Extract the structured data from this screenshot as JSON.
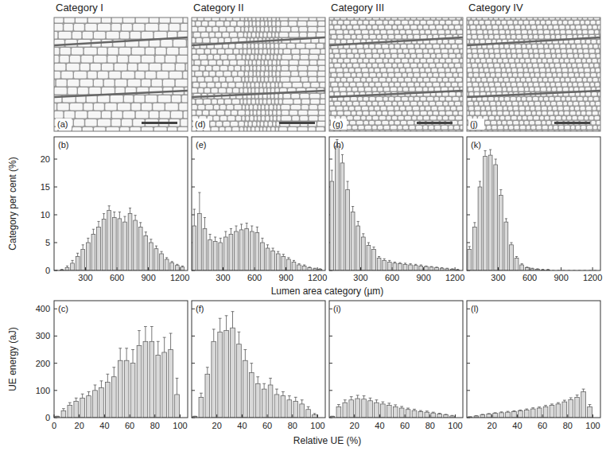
{
  "images": [
    {
      "title": "Category I",
      "annotation": "(a)"
    },
    {
      "title": "Category II",
      "annotation": "(d)"
    },
    {
      "title": "Category III",
      "annotation": "(g)"
    },
    {
      "title": "Category IV",
      "annotation": "(j)"
    }
  ],
  "chart_data": [
    {
      "type": "bar",
      "annotation": "(b)",
      "y_label": "Category per cent (%)",
      "x_label": "Lumen area category (µm)",
      "color": "#d9d9d9",
      "tick_labels": true,
      "x": [
        25,
        75,
        125,
        175,
        225,
        275,
        325,
        375,
        425,
        475,
        525,
        575,
        625,
        675,
        725,
        775,
        825,
        875,
        925,
        975,
        1025,
        1075,
        1125,
        1175,
        1225
      ],
      "values": [
        0,
        0.1,
        0.5,
        1.3,
        2.5,
        3.8,
        5,
        6.5,
        7.8,
        9.2,
        10.8,
        9.5,
        9.3,
        8.7,
        10.2,
        9,
        7.8,
        6.2,
        5,
        3.9,
        3,
        2,
        1.4,
        0.9,
        0.6
      ],
      "errors": [
        0,
        0.1,
        0.3,
        0.5,
        0.6,
        0.8,
        0.8,
        0.9,
        1,
        1,
        0.8,
        1,
        1.2,
        1,
        1,
        0.9,
        0.8,
        0.7,
        0.6,
        0.5,
        0.4,
        0.3,
        0.2,
        0.2,
        0.2
      ],
      "xlim": [
        0,
        1275
      ],
      "ylim": [
        0,
        24
      ],
      "xticks": [
        300,
        600,
        900,
        1200
      ],
      "yticks": [
        0,
        5,
        10,
        15,
        20
      ]
    },
    {
      "type": "bar",
      "annotation": "(e)",
      "color": "#d9d9d9",
      "tick_labels": "x",
      "x": [
        25,
        75,
        125,
        175,
        225,
        275,
        325,
        375,
        425,
        475,
        525,
        575,
        625,
        675,
        725,
        775,
        825,
        875,
        925,
        975,
        1025,
        1075,
        1125,
        1175,
        1225
      ],
      "values": [
        8,
        10.2,
        7.5,
        5.5,
        5.2,
        5,
        6,
        6.5,
        7,
        7.3,
        7.5,
        7,
        6.8,
        5,
        4,
        3.5,
        3,
        2.5,
        2,
        1.5,
        1,
        0.8,
        0.5,
        0.3,
        0.2
      ],
      "errors": [
        3,
        3.8,
        2,
        1,
        0.8,
        0.8,
        1,
        1,
        1,
        1,
        1,
        1,
        1,
        0.8,
        0.6,
        0.5,
        0.4,
        0.4,
        0.3,
        0.3,
        0.2,
        0.2,
        0.1,
        0.1,
        0.1
      ],
      "xlim": [
        0,
        1275
      ],
      "ylim": [
        0,
        24
      ],
      "xticks": [
        300,
        600,
        900,
        1200
      ],
      "yticks": [
        0,
        5,
        10,
        15,
        20
      ]
    },
    {
      "type": "bar",
      "annotation": "(h)",
      "color": "#d9d9d9",
      "tick_labels": "x",
      "x": [
        25,
        75,
        125,
        175,
        225,
        275,
        325,
        375,
        425,
        475,
        525,
        575,
        625,
        675,
        725,
        775,
        825,
        875,
        925,
        975,
        1025,
        1075,
        1125,
        1175,
        1225
      ],
      "values": [
        16,
        22.3,
        19.3,
        14.5,
        10.5,
        8,
        6,
        4.5,
        3.8,
        2.2,
        1.8,
        1.5,
        1.3,
        1.2,
        1.1,
        1,
        0.9,
        0.8,
        0.7,
        0.6,
        0.5,
        0.4,
        0.3,
        0.2,
        0.1
      ],
      "errors": [
        2,
        1.2,
        1.5,
        1.5,
        1,
        0.8,
        0.6,
        0.5,
        0.4,
        0.3,
        0.3,
        0.3,
        0.2,
        0.2,
        0.2,
        0.2,
        0.2,
        0.2,
        0.1,
        0.1,
        0.1,
        0.1,
        0.1,
        0.1,
        0.1
      ],
      "xlim": [
        0,
        1275
      ],
      "ylim": [
        0,
        24
      ],
      "xticks": [
        300,
        600,
        900,
        1200
      ],
      "yticks": [
        0,
        5,
        10,
        15,
        20
      ]
    },
    {
      "type": "bar",
      "annotation": "(k)",
      "color": "#d9d9d9",
      "tick_labels": "x",
      "x": [
        25,
        75,
        125,
        175,
        225,
        275,
        325,
        375,
        425,
        475,
        525,
        575,
        625,
        675,
        725,
        775,
        825,
        875,
        925,
        975,
        1025,
        1075,
        1125,
        1175,
        1225
      ],
      "values": [
        3.8,
        7.8,
        15,
        20.5,
        20.7,
        19,
        13.5,
        8.7,
        4.6,
        2.2,
        1,
        0.5,
        0.3,
        0.2,
        0.1,
        0.1,
        0,
        0,
        0,
        0,
        0,
        0,
        0,
        0,
        0
      ],
      "errors": [
        0.5,
        0.8,
        1,
        1,
        1,
        1,
        1,
        0.6,
        0.4,
        0.3,
        0.2,
        0.1,
        0.1,
        0.1,
        0.1,
        0.1,
        0,
        0,
        0,
        0,
        0,
        0,
        0,
        0,
        0
      ],
      "xlim": [
        0,
        1275
      ],
      "ylim": [
        0,
        24
      ],
      "xticks": [
        300,
        600,
        900,
        1200
      ],
      "yticks": [
        0,
        5,
        10,
        15,
        20
      ]
    },
    {
      "type": "bar",
      "annotation": "(c)",
      "y_label": "UE energy (aJ)",
      "x_label": "Relative UE  (%)",
      "color": "#d9d9d9",
      "tick_labels": true,
      "x": [
        2.5,
        7.5,
        12.5,
        17.5,
        22.5,
        27.5,
        32.5,
        37.5,
        42.5,
        47.5,
        52.5,
        57.5,
        62.5,
        67.5,
        72.5,
        77.5,
        82.5,
        87.5,
        92.5,
        97.5
      ],
      "values": [
        5,
        25,
        45,
        60,
        72,
        80,
        100,
        110,
        130,
        150,
        210,
        210,
        200,
        265,
        280,
        280,
        230,
        240,
        250,
        85
      ],
      "errors": [
        0,
        8,
        10,
        12,
        15,
        15,
        20,
        25,
        30,
        35,
        45,
        45,
        50,
        55,
        55,
        55,
        50,
        55,
        60,
        60
      ],
      "xlim": [
        0,
        106
      ],
      "ylim": [
        0,
        430
      ],
      "xticks": [
        0,
        20,
        40,
        60,
        80,
        100
      ],
      "yticks": [
        0,
        100,
        200,
        300,
        400
      ]
    },
    {
      "type": "bar",
      "annotation": "(f)",
      "color": "#d9d9d9",
      "tick_labels": "x",
      "x": [
        2.5,
        7.5,
        12.5,
        17.5,
        22.5,
        27.5,
        32.5,
        37.5,
        42.5,
        47.5,
        52.5,
        57.5,
        62.5,
        67.5,
        72.5,
        77.5,
        82.5,
        87.5,
        92.5,
        97.5
      ],
      "values": [
        5,
        75,
        160,
        280,
        315,
        320,
        330,
        270,
        210,
        165,
        125,
        105,
        120,
        85,
        80,
        65,
        60,
        50,
        30,
        10
      ],
      "errors": [
        0,
        15,
        25,
        45,
        50,
        55,
        60,
        45,
        40,
        35,
        25,
        20,
        25,
        20,
        15,
        15,
        15,
        15,
        10,
        5
      ],
      "xlim": [
        0,
        106
      ],
      "ylim": [
        0,
        430
      ],
      "xticks": [
        20,
        40,
        60,
        80,
        100
      ],
      "yticks": [
        0,
        100,
        200,
        300,
        400
      ]
    },
    {
      "type": "bar",
      "annotation": "(i)",
      "color": "#d9d9d9",
      "tick_labels": "x",
      "x": [
        2.5,
        7.5,
        12.5,
        17.5,
        22.5,
        27.5,
        32.5,
        37.5,
        42.5,
        47.5,
        52.5,
        57.5,
        62.5,
        67.5,
        72.5,
        77.5,
        82.5,
        87.5,
        92.5,
        97.5
      ],
      "values": [
        5,
        40,
        55,
        65,
        70,
        68,
        62,
        55,
        50,
        45,
        40,
        35,
        30,
        26,
        22,
        20,
        17,
        13,
        10,
        6
      ],
      "errors": [
        0,
        8,
        10,
        12,
        12,
        12,
        10,
        10,
        8,
        8,
        7,
        6,
        5,
        5,
        4,
        4,
        3,
        3,
        2,
        2
      ],
      "xlim": [
        0,
        106
      ],
      "ylim": [
        0,
        430
      ],
      "xticks": [
        20,
        40,
        60,
        80,
        100
      ],
      "yticks": [
        0,
        100,
        200,
        300,
        400
      ]
    },
    {
      "type": "bar",
      "annotation": "(l)",
      "color": "#d9d9d9",
      "tick_labels": "x",
      "x": [
        2.5,
        7.5,
        12.5,
        17.5,
        22.5,
        27.5,
        32.5,
        37.5,
        42.5,
        47.5,
        52.5,
        57.5,
        62.5,
        67.5,
        72.5,
        77.5,
        82.5,
        87.5,
        92.5,
        97.5
      ],
      "values": [
        3,
        6,
        10,
        13,
        16,
        18,
        20,
        22,
        25,
        28,
        32,
        35,
        40,
        45,
        50,
        58,
        66,
        75,
        95,
        40
      ],
      "errors": [
        0,
        1,
        2,
        2,
        2,
        3,
        3,
        3,
        3,
        4,
        4,
        4,
        5,
        5,
        5,
        6,
        7,
        8,
        10,
        8
      ],
      "xlim": [
        0,
        106
      ],
      "ylim": [
        0,
        430
      ],
      "xticks": [
        20,
        40,
        60,
        80,
        100
      ],
      "yticks": [
        0,
        100,
        200,
        300,
        400
      ]
    }
  ]
}
